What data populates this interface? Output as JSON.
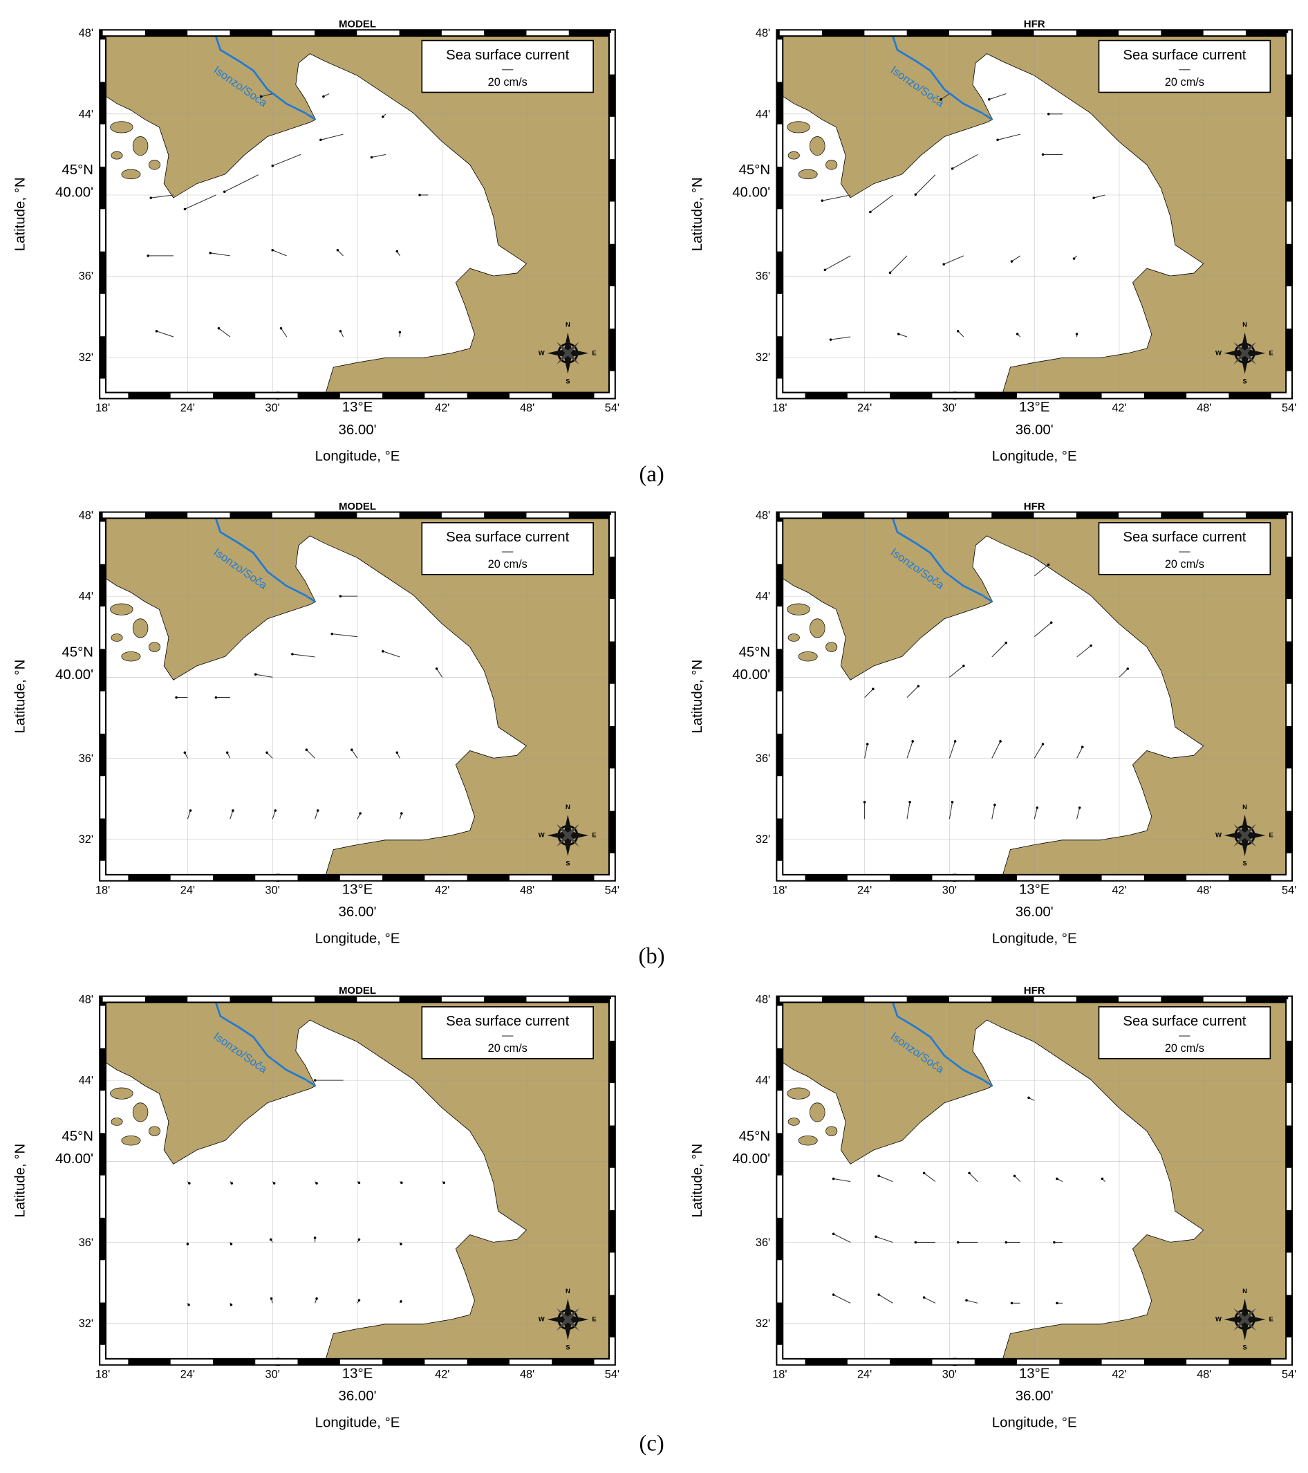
{
  "captions": [
    "(a)",
    "(b)",
    "(c)"
  ],
  "chart_data": [
    {
      "type": "quiver",
      "title": "MODEL",
      "xlabel": "Longitude, °E",
      "ylabel": "Latitude, °N",
      "legend_title": "Sea surface current",
      "scale_label": "20 cm/s",
      "scale_value": 20,
      "river_label": "Isonzo/Soča",
      "compass": [
        "N",
        "E",
        "S",
        "W"
      ],
      "xlim": [
        18,
        54
      ],
      "ylim": [
        30.1,
        48
      ],
      "xticks": [
        {
          "value": 18,
          "label": "18'"
        },
        {
          "value": 24,
          "label": "24'"
        },
        {
          "value": 30,
          "label": "30'"
        },
        {
          "value": 36,
          "label": "13°E\n36.00'"
        },
        {
          "value": 42,
          "label": "42'"
        },
        {
          "value": 48,
          "label": "48'"
        },
        {
          "value": 54,
          "label": "54'"
        }
      ],
      "yticks": [
        {
          "value": 48,
          "label": "48'"
        },
        {
          "value": 44,
          "label": "44'"
        },
        {
          "value": 40,
          "label": "45°N\n40.00'"
        },
        {
          "value": 36,
          "label": "36'"
        },
        {
          "value": 32,
          "label": "32'"
        }
      ],
      "vectors": {
        "lon": [
          23,
          26,
          29,
          32,
          35,
          38,
          41,
          23,
          27,
          31,
          35,
          39,
          23,
          27,
          31,
          35,
          39,
          30,
          34,
          38
        ],
        "lat": [
          40,
          40,
          41,
          42,
          43,
          42,
          40,
          37,
          37,
          37,
          37,
          37,
          33,
          33,
          33,
          33,
          33,
          45,
          45,
          44
        ],
        "u": [
          -40,
          -55,
          -60,
          -50,
          -40,
          -25,
          -15,
          -45,
          -35,
          -25,
          -10,
          -5,
          -30,
          -20,
          -10,
          -5,
          0,
          -20,
          -10,
          -5
        ],
        "v": [
          -5,
          -25,
          -30,
          -20,
          -10,
          -5,
          0,
          0,
          5,
          10,
          10,
          8,
          10,
          15,
          15,
          10,
          8,
          -5,
          -5,
          -5
        ]
      }
    },
    {
      "type": "quiver",
      "title": "HFR",
      "xlabel": "Longitude, °E",
      "ylabel": "Latitude, °N",
      "legend_title": "Sea surface current",
      "scale_label": "20 cm/s",
      "scale_value": 20,
      "river_label": "Isonzo/Soča",
      "compass": [
        "N",
        "E",
        "S",
        "W"
      ],
      "xlim": [
        18,
        54
      ],
      "ylim": [
        30.1,
        48
      ],
      "xticks": [
        {
          "value": 18,
          "label": "18'"
        },
        {
          "value": 24,
          "label": "24'"
        },
        {
          "value": 30,
          "label": "30'"
        },
        {
          "value": 36,
          "label": "13°E\n36.00'"
        },
        {
          "value": 42,
          "label": "42'"
        },
        {
          "value": 48,
          "label": "48'"
        },
        {
          "value": 54,
          "label": "54'"
        }
      ],
      "yticks": [
        {
          "value": 48,
          "label": "48'"
        },
        {
          "value": 44,
          "label": "44'"
        },
        {
          "value": 40,
          "label": "45°N\n40.00'"
        },
        {
          "value": 36,
          "label": "36'"
        },
        {
          "value": 32,
          "label": "32'"
        }
      ],
      "vectors": {
        "lon": [
          23,
          26,
          29,
          32,
          35,
          38,
          41,
          23,
          27,
          31,
          35,
          39,
          23,
          27,
          31,
          35,
          39,
          30,
          34,
          38
        ],
        "lat": [
          40,
          40,
          41,
          42,
          43,
          42,
          40,
          37,
          37,
          37,
          37,
          37,
          33,
          33,
          33,
          33,
          33,
          45,
          45,
          44
        ],
        "u": [
          -50,
          -40,
          -35,
          -45,
          -40,
          -35,
          -20,
          -45,
          -30,
          -35,
          -15,
          -5,
          -35,
          -15,
          -10,
          -5,
          0,
          -15,
          -30,
          -25
        ],
        "v": [
          -10,
          -30,
          -35,
          -25,
          -10,
          0,
          -5,
          -25,
          -30,
          -15,
          -10,
          -5,
          -5,
          5,
          10,
          5,
          5,
          -10,
          -10,
          0
        ]
      }
    },
    {
      "type": "quiver",
      "title": "MODEL",
      "xlabel": "Longitude, °E",
      "ylabel": "Latitude, °N",
      "legend_title": "Sea surface current",
      "scale_label": "20 cm/s",
      "scale_value": 20,
      "river_label": "Isonzo/Soča",
      "compass": [
        "N",
        "E",
        "S",
        "W"
      ],
      "xlim": [
        18,
        54
      ],
      "ylim": [
        30.1,
        48
      ],
      "xticks": [
        {
          "value": 18,
          "label": "18'"
        },
        {
          "value": 24,
          "label": "24'"
        },
        {
          "value": 30,
          "label": "30'"
        },
        {
          "value": 36,
          "label": "13°E\n36.00'"
        },
        {
          "value": 42,
          "label": "42'"
        },
        {
          "value": 48,
          "label": "48'"
        },
        {
          "value": 54,
          "label": "54'"
        }
      ],
      "yticks": [
        {
          "value": 48,
          "label": "48'"
        },
        {
          "value": 44,
          "label": "44'"
        },
        {
          "value": 40,
          "label": "45°N\n40.00'"
        },
        {
          "value": 36,
          "label": "36'"
        },
        {
          "value": 32,
          "label": "32'"
        }
      ],
      "vectors": {
        "lon": [
          24,
          27,
          30,
          33,
          36,
          39,
          42,
          24,
          27,
          30,
          33,
          36,
          39,
          24,
          27,
          30,
          33,
          36,
          39,
          36
        ],
        "lat": [
          39,
          39,
          40,
          41,
          42,
          41,
          40,
          36,
          36,
          36,
          36,
          36,
          36,
          33,
          33,
          33,
          33,
          33,
          33,
          44
        ],
        "u": [
          -20,
          -25,
          -30,
          -40,
          -45,
          -30,
          -10,
          -5,
          -5,
          -10,
          -15,
          -10,
          -5,
          5,
          5,
          5,
          5,
          5,
          3,
          -30
        ],
        "v": [
          0,
          0,
          5,
          5,
          5,
          10,
          15,
          10,
          10,
          10,
          15,
          15,
          10,
          15,
          15,
          15,
          15,
          10,
          10,
          0
        ]
      }
    },
    {
      "type": "quiver",
      "title": "HFR",
      "xlabel": "Longitude, °E",
      "ylabel": "Latitude, °N",
      "legend_title": "Sea surface current",
      "scale_label": "20 cm/s",
      "scale_value": 20,
      "river_label": "Isonzo/Soča",
      "compass": [
        "N",
        "E",
        "S",
        "W"
      ],
      "xlim": [
        18,
        54
      ],
      "ylim": [
        30.1,
        48
      ],
      "xticks": [
        {
          "value": 18,
          "label": "18'"
        },
        {
          "value": 24,
          "label": "24'"
        },
        {
          "value": 30,
          "label": "30'"
        },
        {
          "value": 36,
          "label": "13°E\n36.00'"
        },
        {
          "value": 42,
          "label": "42'"
        },
        {
          "value": 48,
          "label": "48'"
        },
        {
          "value": 54,
          "label": "54'"
        }
      ],
      "yticks": [
        {
          "value": 48,
          "label": "48'"
        },
        {
          "value": 44,
          "label": "44'"
        },
        {
          "value": 40,
          "label": "45°N\n40.00'"
        },
        {
          "value": 36,
          "label": "36'"
        },
        {
          "value": 32,
          "label": "32'"
        }
      ],
      "vectors": {
        "lon": [
          24,
          27,
          30,
          33,
          36,
          39,
          42,
          24,
          27,
          30,
          33,
          36,
          39,
          24,
          27,
          30,
          33,
          36,
          39,
          36
        ],
        "lat": [
          39,
          39,
          40,
          41,
          42,
          41,
          40,
          36,
          36,
          36,
          36,
          36,
          36,
          33,
          33,
          33,
          33,
          33,
          33,
          45
        ],
        "u": [
          15,
          20,
          25,
          25,
          30,
          25,
          15,
          5,
          10,
          10,
          15,
          15,
          10,
          0,
          5,
          5,
          5,
          5,
          5,
          25
        ],
        "v": [
          15,
          20,
          20,
          25,
          25,
          20,
          15,
          25,
          30,
          30,
          30,
          25,
          20,
          30,
          30,
          30,
          25,
          20,
          20,
          20
        ]
      }
    },
    {
      "type": "quiver",
      "title": "MODEL",
      "xlabel": "Longitude, °E",
      "ylabel": "Latitude, °N",
      "legend_title": "Sea surface current",
      "scale_label": "20 cm/s",
      "scale_value": 20,
      "river_label": "Isonzo/Soča",
      "compass": [
        "N",
        "E",
        "S",
        "W"
      ],
      "xlim": [
        18,
        54
      ],
      "ylim": [
        30.1,
        48
      ],
      "xticks": [
        {
          "value": 18,
          "label": "18'"
        },
        {
          "value": 24,
          "label": "24'"
        },
        {
          "value": 30,
          "label": "30'"
        },
        {
          "value": 36,
          "label": "13°E\n36.00'"
        },
        {
          "value": 42,
          "label": "42'"
        },
        {
          "value": 48,
          "label": "48'"
        },
        {
          "value": 54,
          "label": "54'"
        }
      ],
      "yticks": [
        {
          "value": 48,
          "label": "48'"
        },
        {
          "value": 44,
          "label": "44'"
        },
        {
          "value": 40,
          "label": "45°N\n40.00'"
        },
        {
          "value": 36,
          "label": "36'"
        },
        {
          "value": 32,
          "label": "32'"
        }
      ],
      "vectors": {
        "lon": [
          24,
          27,
          30,
          33,
          36,
          39,
          42,
          24,
          27,
          30,
          33,
          36,
          39,
          24,
          27,
          30,
          33,
          36,
          39,
          35
        ],
        "lat": [
          39,
          39,
          39,
          39,
          39,
          39,
          39,
          36,
          36,
          36,
          36,
          36,
          36,
          33,
          33,
          33,
          33,
          33,
          33,
          44
        ],
        "u": [
          3,
          3,
          3,
          3,
          3,
          3,
          3,
          0,
          2,
          -3,
          0,
          3,
          2,
          2,
          2,
          -2,
          3,
          3,
          2,
          -50
        ],
        "v": [
          -3,
          -3,
          -3,
          -3,
          -2,
          -2,
          -2,
          -3,
          -3,
          5,
          8,
          5,
          -3,
          -3,
          -3,
          8,
          8,
          5,
          3,
          0
        ]
      }
    },
    {
      "type": "quiver",
      "title": "HFR",
      "xlabel": "Longitude, °E",
      "ylabel": "Latitude, °N",
      "legend_title": "Sea surface current",
      "scale_label": "20 cm/s",
      "scale_value": 20,
      "river_label": "Isonzo/Soča",
      "compass": [
        "N",
        "E",
        "S",
        "W"
      ],
      "xlim": [
        18,
        54
      ],
      "ylim": [
        30.1,
        48
      ],
      "xticks": [
        {
          "value": 18,
          "label": "18'"
        },
        {
          "value": 24,
          "label": "24'"
        },
        {
          "value": 30,
          "label": "30'"
        },
        {
          "value": 36,
          "label": "13°E\n36.00'"
        },
        {
          "value": 42,
          "label": "42'"
        },
        {
          "value": 48,
          "label": "48'"
        },
        {
          "value": 54,
          "label": "54'"
        }
      ],
      "yticks": [
        {
          "value": 48,
          "label": "48'"
        },
        {
          "value": 44,
          "label": "44'"
        },
        {
          "value": 40,
          "label": "45°N\n40.00'"
        },
        {
          "value": 36,
          "label": "36'"
        },
        {
          "value": 32,
          "label": "32'"
        }
      ],
      "vectors": {
        "lon": [
          23,
          26,
          29,
          32,
          35,
          38,
          41,
          23,
          26,
          29,
          32,
          35,
          38,
          23,
          26,
          29,
          32,
          35,
          38,
          36
        ],
        "lat": [
          39,
          39,
          39,
          39,
          39,
          39,
          39,
          36,
          36,
          36,
          36,
          36,
          36,
          33,
          33,
          33,
          33,
          33,
          33,
          43
        ],
        "u": [
          -30,
          -25,
          -20,
          -15,
          -10,
          -10,
          -5,
          -30,
          -30,
          -35,
          -35,
          -25,
          -15,
          -30,
          -25,
          -20,
          -20,
          -15,
          -10,
          -10
        ],
        "v": [
          5,
          10,
          15,
          15,
          10,
          5,
          5,
          15,
          10,
          0,
          0,
          0,
          0,
          15,
          15,
          10,
          5,
          0,
          0,
          5
        ]
      }
    }
  ]
}
